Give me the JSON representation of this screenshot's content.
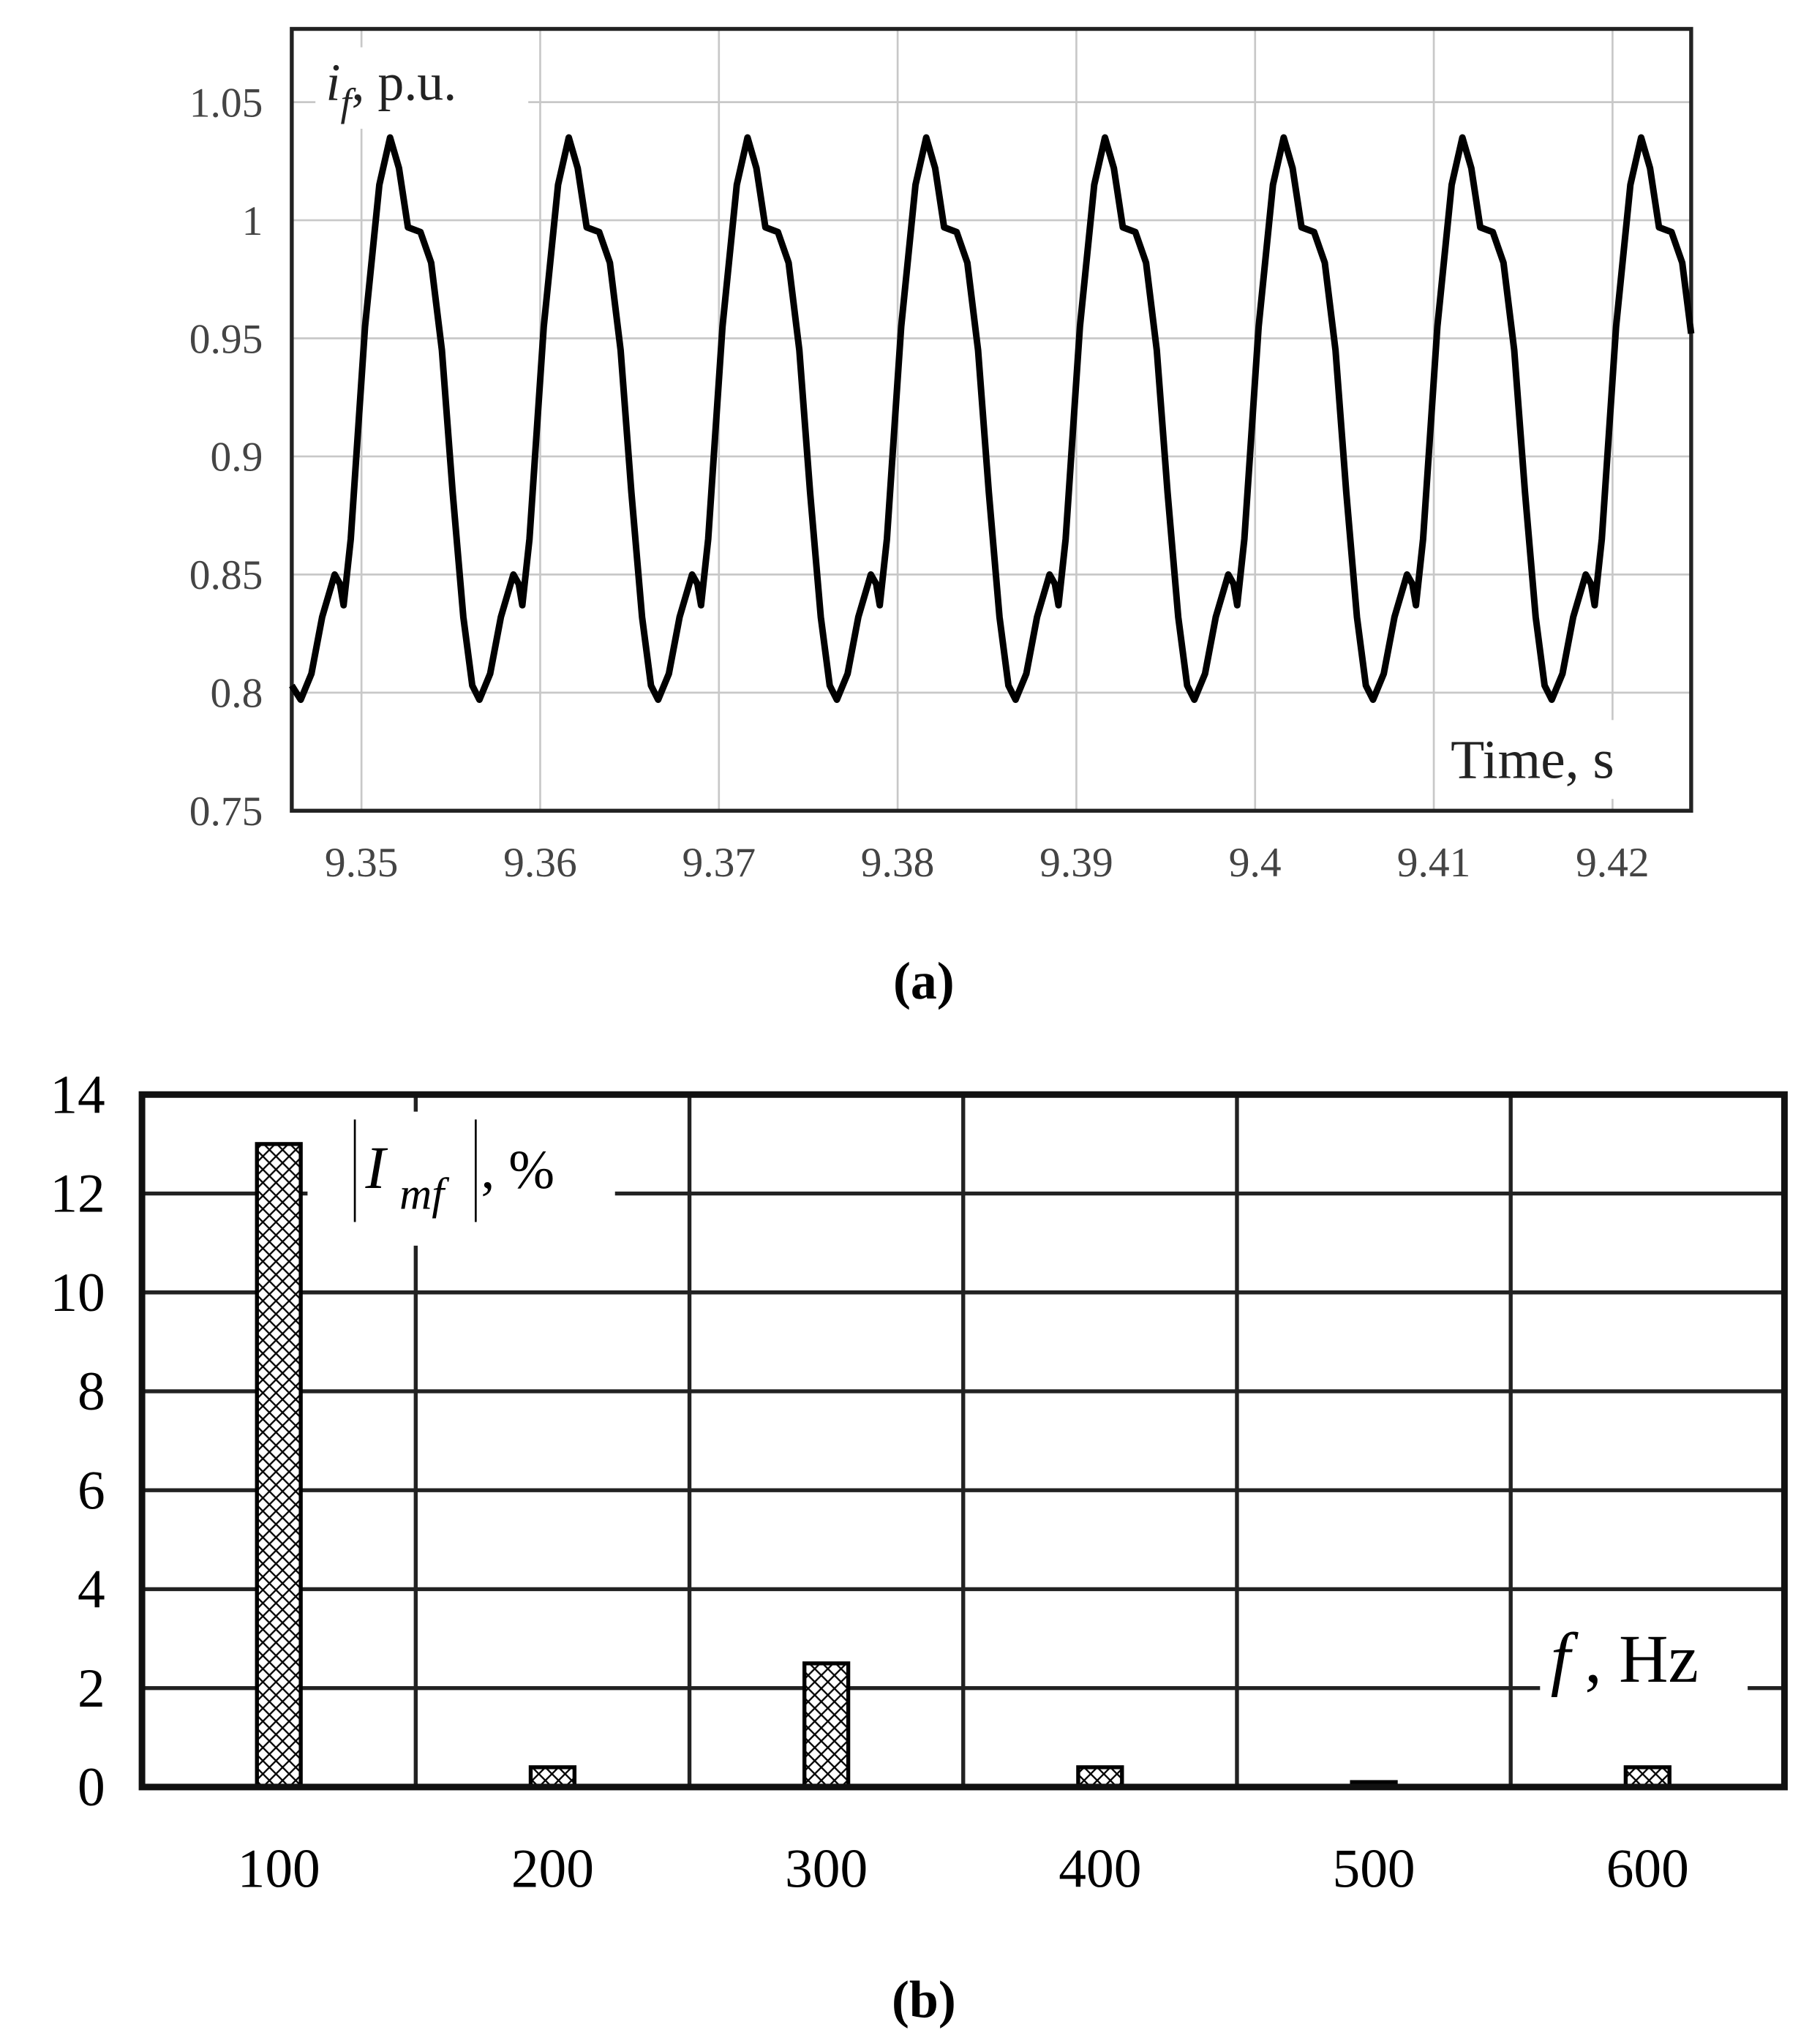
{
  "chart_data": [
    {
      "type": "line",
      "caption": "(a)",
      "y_label": "i",
      "y_label_sub": "f",
      "y_label_unit": ", p.u.",
      "x_label": "Time, s",
      "color": "#000000",
      "grid": true,
      "xlim": [
        9.3461,
        9.4244
      ],
      "ylim": [
        0.75,
        1.081
      ],
      "xticks": [
        9.35,
        9.36,
        9.37,
        9.38,
        9.39,
        9.4,
        9.41,
        9.42
      ],
      "yticks": [
        0.75,
        0.8,
        0.85,
        0.9,
        0.95,
        1,
        1.05
      ],
      "x": [
        9.3461,
        9.3466,
        9.3472,
        9.3478,
        9.3485,
        9.3488,
        9.349,
        9.3494,
        9.3502,
        9.351,
        9.3516,
        9.3521,
        9.3526,
        9.3533,
        9.3539,
        9.3545,
        9.3551,
        9.3557,
        9.3562,
        9.3566,
        9.3572,
        9.3578,
        9.3585,
        9.3588,
        9.359,
        9.3594,
        9.3602,
        9.361,
        9.3616,
        9.3621,
        9.3626,
        9.3633,
        9.3639,
        9.3645,
        9.3651,
        9.3657,
        9.3662,
        9.3666,
        9.3672,
        9.3678,
        9.3685,
        9.3688,
        9.369,
        9.3694,
        9.3702,
        9.371,
        9.3716,
        9.3721,
        9.3726,
        9.3733,
        9.3739,
        9.3745,
        9.3751,
        9.3757,
        9.3762,
        9.3766,
        9.3772,
        9.3778,
        9.3785,
        9.3788,
        9.379,
        9.3794,
        9.3802,
        9.381,
        9.3816,
        9.3821,
        9.3826,
        9.3833,
        9.3839,
        9.3845,
        9.3851,
        9.3857,
        9.3862,
        9.3866,
        9.3872,
        9.3878,
        9.3885,
        9.3888,
        9.389,
        9.3894,
        9.3902,
        9.391,
        9.3916,
        9.3921,
        9.3926,
        9.3933,
        9.3939,
        9.3945,
        9.3951,
        9.3957,
        9.3962,
        9.3966,
        9.3972,
        9.3978,
        9.3985,
        9.3988,
        9.399,
        9.3994,
        9.4002,
        9.401,
        9.4016,
        9.4021,
        9.4026,
        9.4033,
        9.4039,
        9.4045,
        9.4051,
        9.4057,
        9.4062,
        9.4066,
        9.4072,
        9.4078,
        9.4085,
        9.4088,
        9.409,
        9.4094,
        9.4102,
        9.411,
        9.4116,
        9.4121,
        9.4126,
        9.4133,
        9.4139,
        9.4145,
        9.4151,
        9.4157,
        9.4162,
        9.4166,
        9.4172,
        9.4178,
        9.4185,
        9.4188,
        9.419,
        9.4194,
        9.4202,
        9.421,
        9.4216,
        9.4221,
        9.4226,
        9.4233,
        9.4239,
        9.4244
      ],
      "values": [
        0.803,
        0.797,
        0.808,
        0.832,
        0.85,
        0.846,
        0.837,
        0.865,
        0.955,
        1.015,
        1.035,
        1.022,
        0.997,
        0.995,
        0.982,
        0.945,
        0.885,
        0.832,
        0.803,
        0.797,
        0.808,
        0.832,
        0.85,
        0.846,
        0.837,
        0.865,
        0.955,
        1.015,
        1.035,
        1.022,
        0.997,
        0.995,
        0.982,
        0.945,
        0.885,
        0.832,
        0.803,
        0.797,
        0.808,
        0.832,
        0.85,
        0.846,
        0.837,
        0.865,
        0.955,
        1.015,
        1.035,
        1.022,
        0.997,
        0.995,
        0.982,
        0.945,
        0.885,
        0.832,
        0.803,
        0.797,
        0.808,
        0.832,
        0.85,
        0.846,
        0.837,
        0.865,
        0.955,
        1.015,
        1.035,
        1.022,
        0.997,
        0.995,
        0.982,
        0.945,
        0.885,
        0.832,
        0.803,
        0.797,
        0.808,
        0.832,
        0.85,
        0.846,
        0.837,
        0.865,
        0.955,
        1.015,
        1.035,
        1.022,
        0.997,
        0.995,
        0.982,
        0.945,
        0.885,
        0.832,
        0.803,
        0.797,
        0.808,
        0.832,
        0.85,
        0.846,
        0.837,
        0.865,
        0.955,
        1.015,
        1.035,
        1.022,
        0.997,
        0.995,
        0.982,
        0.945,
        0.885,
        0.832,
        0.803,
        0.797,
        0.808,
        0.832,
        0.85,
        0.846,
        0.837,
        0.865,
        0.955,
        1.015,
        1.035,
        1.022,
        0.997,
        0.995,
        0.982,
        0.945,
        0.885,
        0.832,
        0.803,
        0.797,
        0.808,
        0.832,
        0.85,
        0.846,
        0.837,
        0.865,
        0.955,
        1.015,
        1.035,
        1.022,
        0.997,
        0.995,
        0.982,
        0.952
      ]
    },
    {
      "type": "bar",
      "caption": "(b)",
      "y_label": "I",
      "y_label_sub": "mf",
      "y_label_unit": ", %",
      "x_label": "f",
      "x_label_unit": ", Hz",
      "color": "#000000",
      "grid": true,
      "categories": [
        "100",
        "200",
        "300",
        "400",
        "500",
        "600"
      ],
      "values": [
        13,
        0.4,
        2.5,
        0.4,
        0.1,
        0.4
      ],
      "ylim": [
        0,
        14
      ],
      "yticks": [
        0,
        2,
        4,
        6,
        8,
        10,
        12,
        14
      ]
    }
  ]
}
